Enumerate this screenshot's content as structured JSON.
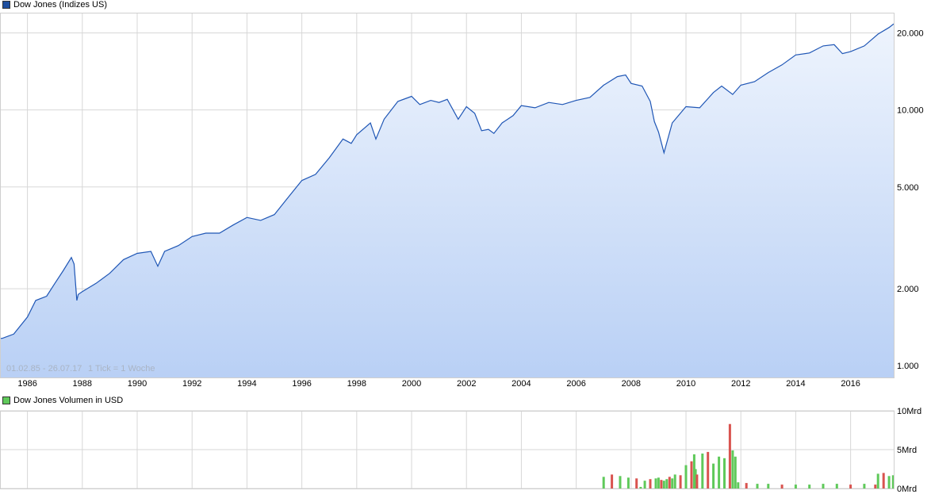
{
  "chart_data": [
    {
      "type": "area",
      "legend_label": "Dow Jones (Indizes US)",
      "colors": {
        "line": "#1f56b5",
        "fill_top": "#eef4fd",
        "fill_bottom": "#b9d0f5",
        "grid": "#d7d7d7",
        "legend_swatch": "#1f4f9f"
      },
      "yscale": "log",
      "ylim": [
        900,
        24000
      ],
      "xlim": [
        1985.0,
        2017.6
      ],
      "x_ticks": [
        1986,
        1988,
        1990,
        1992,
        1994,
        1996,
        1998,
        2000,
        2002,
        2004,
        2006,
        2008,
        2010,
        2012,
        2014,
        2016
      ],
      "x_tick_labels": [
        "1986",
        "1988",
        "1990",
        "1992",
        "1994",
        "1996",
        "1998",
        "2000",
        "2002",
        "2004",
        "2006",
        "2008",
        "2010",
        "2012",
        "2014",
        "2016"
      ],
      "y_ticks": [
        1000,
        2000,
        5000,
        10000,
        20000
      ],
      "y_tick_labels": [
        "1.000",
        "2.000",
        "5.000",
        "10.000",
        "20.000"
      ],
      "grid": true,
      "footnote_range": "01.02.85 - 26.07.17",
      "footnote_tick": "1 Tick = 1 Woche",
      "x": [
        1985.08,
        1985.5,
        1986.0,
        1986.3,
        1986.7,
        1987.0,
        1987.3,
        1987.6,
        1987.7,
        1987.8,
        1987.85,
        1988.0,
        1988.5,
        1989.0,
        1989.5,
        1990.0,
        1990.5,
        1990.75,
        1991.0,
        1991.5,
        1992.0,
        1992.5,
        1993.0,
        1993.5,
        1994.0,
        1994.5,
        1995.0,
        1995.5,
        1996.0,
        1996.5,
        1997.0,
        1997.5,
        1997.8,
        1998.0,
        1998.5,
        1998.7,
        1999.0,
        1999.5,
        2000.0,
        2000.3,
        2000.7,
        2001.0,
        2001.3,
        2001.7,
        2002.0,
        2002.3,
        2002.55,
        2002.8,
        2003.0,
        2003.3,
        2003.7,
        2004.0,
        2004.5,
        2005.0,
        2005.5,
        2006.0,
        2006.5,
        2007.0,
        2007.5,
        2007.8,
        2008.0,
        2008.4,
        2008.7,
        2008.85,
        2009.0,
        2009.2,
        2009.5,
        2010.0,
        2010.5,
        2011.0,
        2011.3,
        2011.7,
        2012.0,
        2012.5,
        2013.0,
        2013.5,
        2014.0,
        2014.5,
        2015.0,
        2015.4,
        2015.7,
        2016.0,
        2016.5,
        2017.0,
        2017.4,
        2017.57
      ],
      "y": [
        1280,
        1330,
        1550,
        1800,
        1870,
        2100,
        2350,
        2650,
        2500,
        1800,
        1900,
        1950,
        2100,
        2300,
        2600,
        2750,
        2800,
        2450,
        2800,
        2950,
        3200,
        3300,
        3300,
        3550,
        3800,
        3700,
        3900,
        4550,
        5300,
        5600,
        6500,
        7700,
        7400,
        8000,
        8900,
        7700,
        9200,
        10800,
        11300,
        10500,
        10900,
        10700,
        11000,
        9200,
        10300,
        9700,
        8300,
        8400,
        8100,
        8900,
        9500,
        10400,
        10200,
        10700,
        10500,
        10900,
        11200,
        12500,
        13500,
        13700,
        12700,
        12400,
        10800,
        9000,
        8200,
        6800,
        8900,
        10300,
        10200,
        11700,
        12400,
        11500,
        12500,
        12900,
        14000,
        15000,
        16400,
        16700,
        17800,
        18000,
        16600,
        16900,
        17800,
        19800,
        21000,
        21700
      ]
    },
    {
      "type": "bar",
      "legend_label": "Dow Jones Volumen in USD",
      "colors": {
        "up": "#5fc95a",
        "down": "#d9534f",
        "legend_swatch": "#5fc95a"
      },
      "ylim": [
        0,
        10
      ],
      "y_ticks": [
        0,
        5,
        10
      ],
      "y_tick_labels": [
        "0Mrd",
        "5Mrd",
        "10Mrd"
      ],
      "grid": true,
      "x": [
        2007.0,
        2007.3,
        2007.6,
        2007.9,
        2008.2,
        2008.35,
        2008.5,
        2008.7,
        2008.9,
        2009.0,
        2009.1,
        2009.2,
        2009.3,
        2009.4,
        2009.5,
        2009.6,
        2009.8,
        2010.0,
        2010.2,
        2010.3,
        2010.35,
        2010.4,
        2010.6,
        2010.8,
        2011.0,
        2011.2,
        2011.4,
        2011.6,
        2011.7,
        2011.8,
        2011.9,
        2012.2,
        2012.6,
        2013.0,
        2013.5,
        2014.0,
        2014.5,
        2015.0,
        2015.5,
        2016.0,
        2016.5,
        2016.9,
        2017.0,
        2017.2,
        2017.4,
        2017.55
      ],
      "values": [
        1.5,
        1.8,
        1.6,
        1.4,
        1.3,
        0.2,
        1.0,
        1.2,
        1.3,
        1.4,
        1.1,
        1.0,
        1.2,
        1.5,
        1.3,
        1.8,
        1.7,
        3.0,
        3.5,
        4.4,
        2.5,
        1.8,
        4.5,
        4.7,
        3.2,
        4.1,
        3.9,
        8.3,
        4.9,
        4.1,
        0.8,
        0.7,
        0.6,
        0.6,
        0.5,
        0.5,
        0.5,
        0.6,
        0.6,
        0.5,
        0.6,
        0.5,
        1.9,
        2.0,
        1.6,
        1.7
      ],
      "directions": [
        "up",
        "down",
        "up",
        "up",
        "down",
        "up",
        "up",
        "down",
        "up",
        "up",
        "down",
        "up",
        "up",
        "down",
        "up",
        "up",
        "down",
        "up",
        "down",
        "up",
        "up",
        "down",
        "up",
        "down",
        "up",
        "up",
        "up",
        "down",
        "up",
        "up",
        "up",
        "down",
        "up",
        "up",
        "down",
        "up",
        "up",
        "up",
        "up",
        "down",
        "up",
        "down",
        "up",
        "down",
        "up",
        "up"
      ]
    }
  ]
}
